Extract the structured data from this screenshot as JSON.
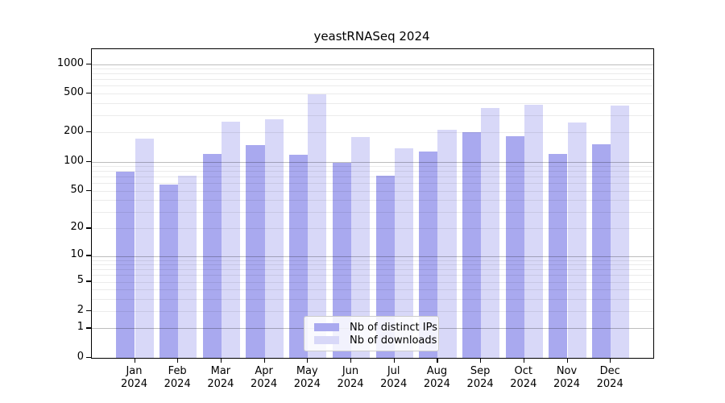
{
  "title": "yeastRNASeq 2024",
  "chart_data": {
    "type": "bar",
    "title": "yeastRNASeq 2024",
    "subtitle": "",
    "xlabel": "",
    "ylabel": "",
    "categories": [
      "Jan 2024",
      "Feb 2024",
      "Mar 2024",
      "Apr 2024",
      "May 2024",
      "Jun 2024",
      "Jul 2024",
      "Aug 2024",
      "Sep 2024",
      "Oct 2024",
      "Nov 2024",
      "Dec 2024"
    ],
    "month_labels": [
      {
        "month": "Jan",
        "year": "2024"
      },
      {
        "month": "Feb",
        "year": "2024"
      },
      {
        "month": "Mar",
        "year": "2024"
      },
      {
        "month": "Apr",
        "year": "2024"
      },
      {
        "month": "May",
        "year": "2024"
      },
      {
        "month": "Jun",
        "year": "2024"
      },
      {
        "month": "Jul",
        "year": "2024"
      },
      {
        "month": "Aug",
        "year": "2024"
      },
      {
        "month": "Sep",
        "year": "2024"
      },
      {
        "month": "Oct",
        "year": "2024"
      },
      {
        "month": "Nov",
        "year": "2024"
      },
      {
        "month": "Dec",
        "year": "2024"
      }
    ],
    "series": [
      {
        "name": "Nb of distinct IPs",
        "color": "#a9a9ef",
        "values": [
          78,
          58,
          120,
          147,
          117,
          97,
          72,
          128,
          199,
          184,
          119,
          151
        ]
      },
      {
        "name": "Nb of downloads",
        "color": "#d8d8f8",
        "values": [
          171,
          72,
          258,
          270,
          489,
          178,
          138,
          212,
          358,
          387,
          250,
          379
        ]
      }
    ],
    "y_scale": "log10(1+x)",
    "y_tick_values": [
      1000,
      500,
      200,
      100,
      50,
      20,
      10,
      5,
      2,
      1,
      0
    ],
    "y_tick_labels": [
      "1000",
      "500",
      "200",
      "100",
      "50",
      "20",
      "10",
      "5",
      "2",
      "1",
      "0"
    ],
    "minor_gridline_values": [
      2,
      3,
      4,
      5,
      6,
      7,
      8,
      9,
      20,
      30,
      40,
      50,
      60,
      70,
      80,
      90,
      200,
      300,
      400,
      500,
      600,
      700,
      800,
      900
    ],
    "major_gridline_values": [
      1,
      10,
      100,
      1000
    ],
    "ylim_top_value": 1400,
    "grid": true,
    "legend_position": "lower center"
  },
  "legend": {
    "items": [
      {
        "label": "Nb of distinct IPs",
        "color": "#a9a9ef"
      },
      {
        "label": "Nb of downloads",
        "color": "#d8d8f8"
      }
    ]
  }
}
